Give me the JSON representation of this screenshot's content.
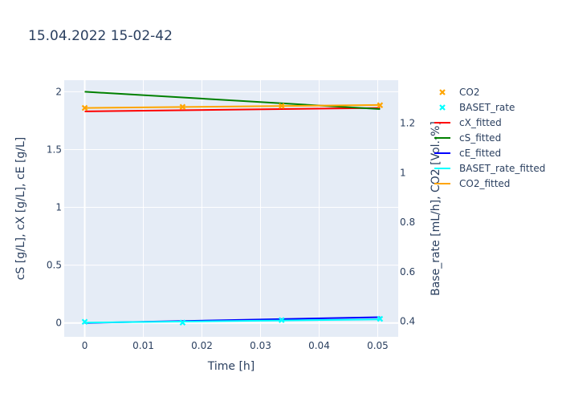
{
  "chart_data": {
    "type": "line",
    "title": "15.04.2022 15-02-42",
    "xlabel": "Time [h]",
    "ylabel_left": "cS [g/L], cX [g/L], cE [g/L]",
    "ylabel_right": "Base_rate [mL/h],  CO2 [Vol.-%]",
    "xlim": [
      -0.0035,
      0.0535
    ],
    "ylim_left": [
      -0.12,
      2.1
    ],
    "ylim_right": [
      0.3373,
      1.374
    ],
    "x_ticks": [
      0,
      0.01,
      0.02,
      0.03,
      0.04,
      0.05
    ],
    "x_tick_labels": [
      "0",
      "0.01",
      "0.02",
      "0.03",
      "0.04",
      "0.05"
    ],
    "y_left_ticks": [
      0,
      0.5,
      1,
      1.5,
      2
    ],
    "y_left_tick_labels": [
      "0",
      "0.5",
      "1",
      "1.5",
      "2"
    ],
    "y_right_ticks": [
      0.4,
      0.6,
      0.8,
      1,
      1.2
    ],
    "y_right_tick_labels": [
      "0.4",
      "0.6",
      "0.8",
      "1",
      "1.2"
    ],
    "grid": true,
    "legend_position": "right",
    "series": [
      {
        "name": "CO2",
        "mode": "markers",
        "axis": "right",
        "color": "#FFA500",
        "x": [
          0,
          0.0167,
          0.0336,
          0.0504
        ],
        "y": [
          1.262,
          1.266,
          1.27,
          1.273
        ]
      },
      {
        "name": "BASET_rate",
        "mode": "markers",
        "axis": "right",
        "color": "#00FFFF",
        "x": [
          0,
          0.0167,
          0.0336,
          0.0504
        ],
        "y": [
          0.398,
          0.395,
          0.405,
          0.41
        ]
      },
      {
        "name": "cX_fitted",
        "mode": "lines",
        "axis": "left",
        "color": "#FF0000",
        "x": [
          0,
          0.0504
        ],
        "y": [
          1.83,
          1.86
        ]
      },
      {
        "name": "cS_fitted",
        "mode": "lines",
        "axis": "left",
        "color": "#008000",
        "x": [
          0,
          0.0504
        ],
        "y": [
          2.0,
          1.85
        ]
      },
      {
        "name": "cE_fitted",
        "mode": "lines",
        "axis": "left",
        "color": "#0000FF",
        "x": [
          0,
          0.0504
        ],
        "y": [
          0.0,
          0.05
        ]
      },
      {
        "name": "BASET_rate_fitted",
        "mode": "lines",
        "axis": "right",
        "color": "#00FFFF",
        "x": [
          0,
          0.0504
        ],
        "y": [
          0.395,
          0.408
        ]
      },
      {
        "name": "CO2_fitted",
        "mode": "lines",
        "axis": "right",
        "color": "#FFA500",
        "x": [
          0,
          0.0504
        ],
        "y": [
          1.262,
          1.274
        ]
      }
    ]
  }
}
